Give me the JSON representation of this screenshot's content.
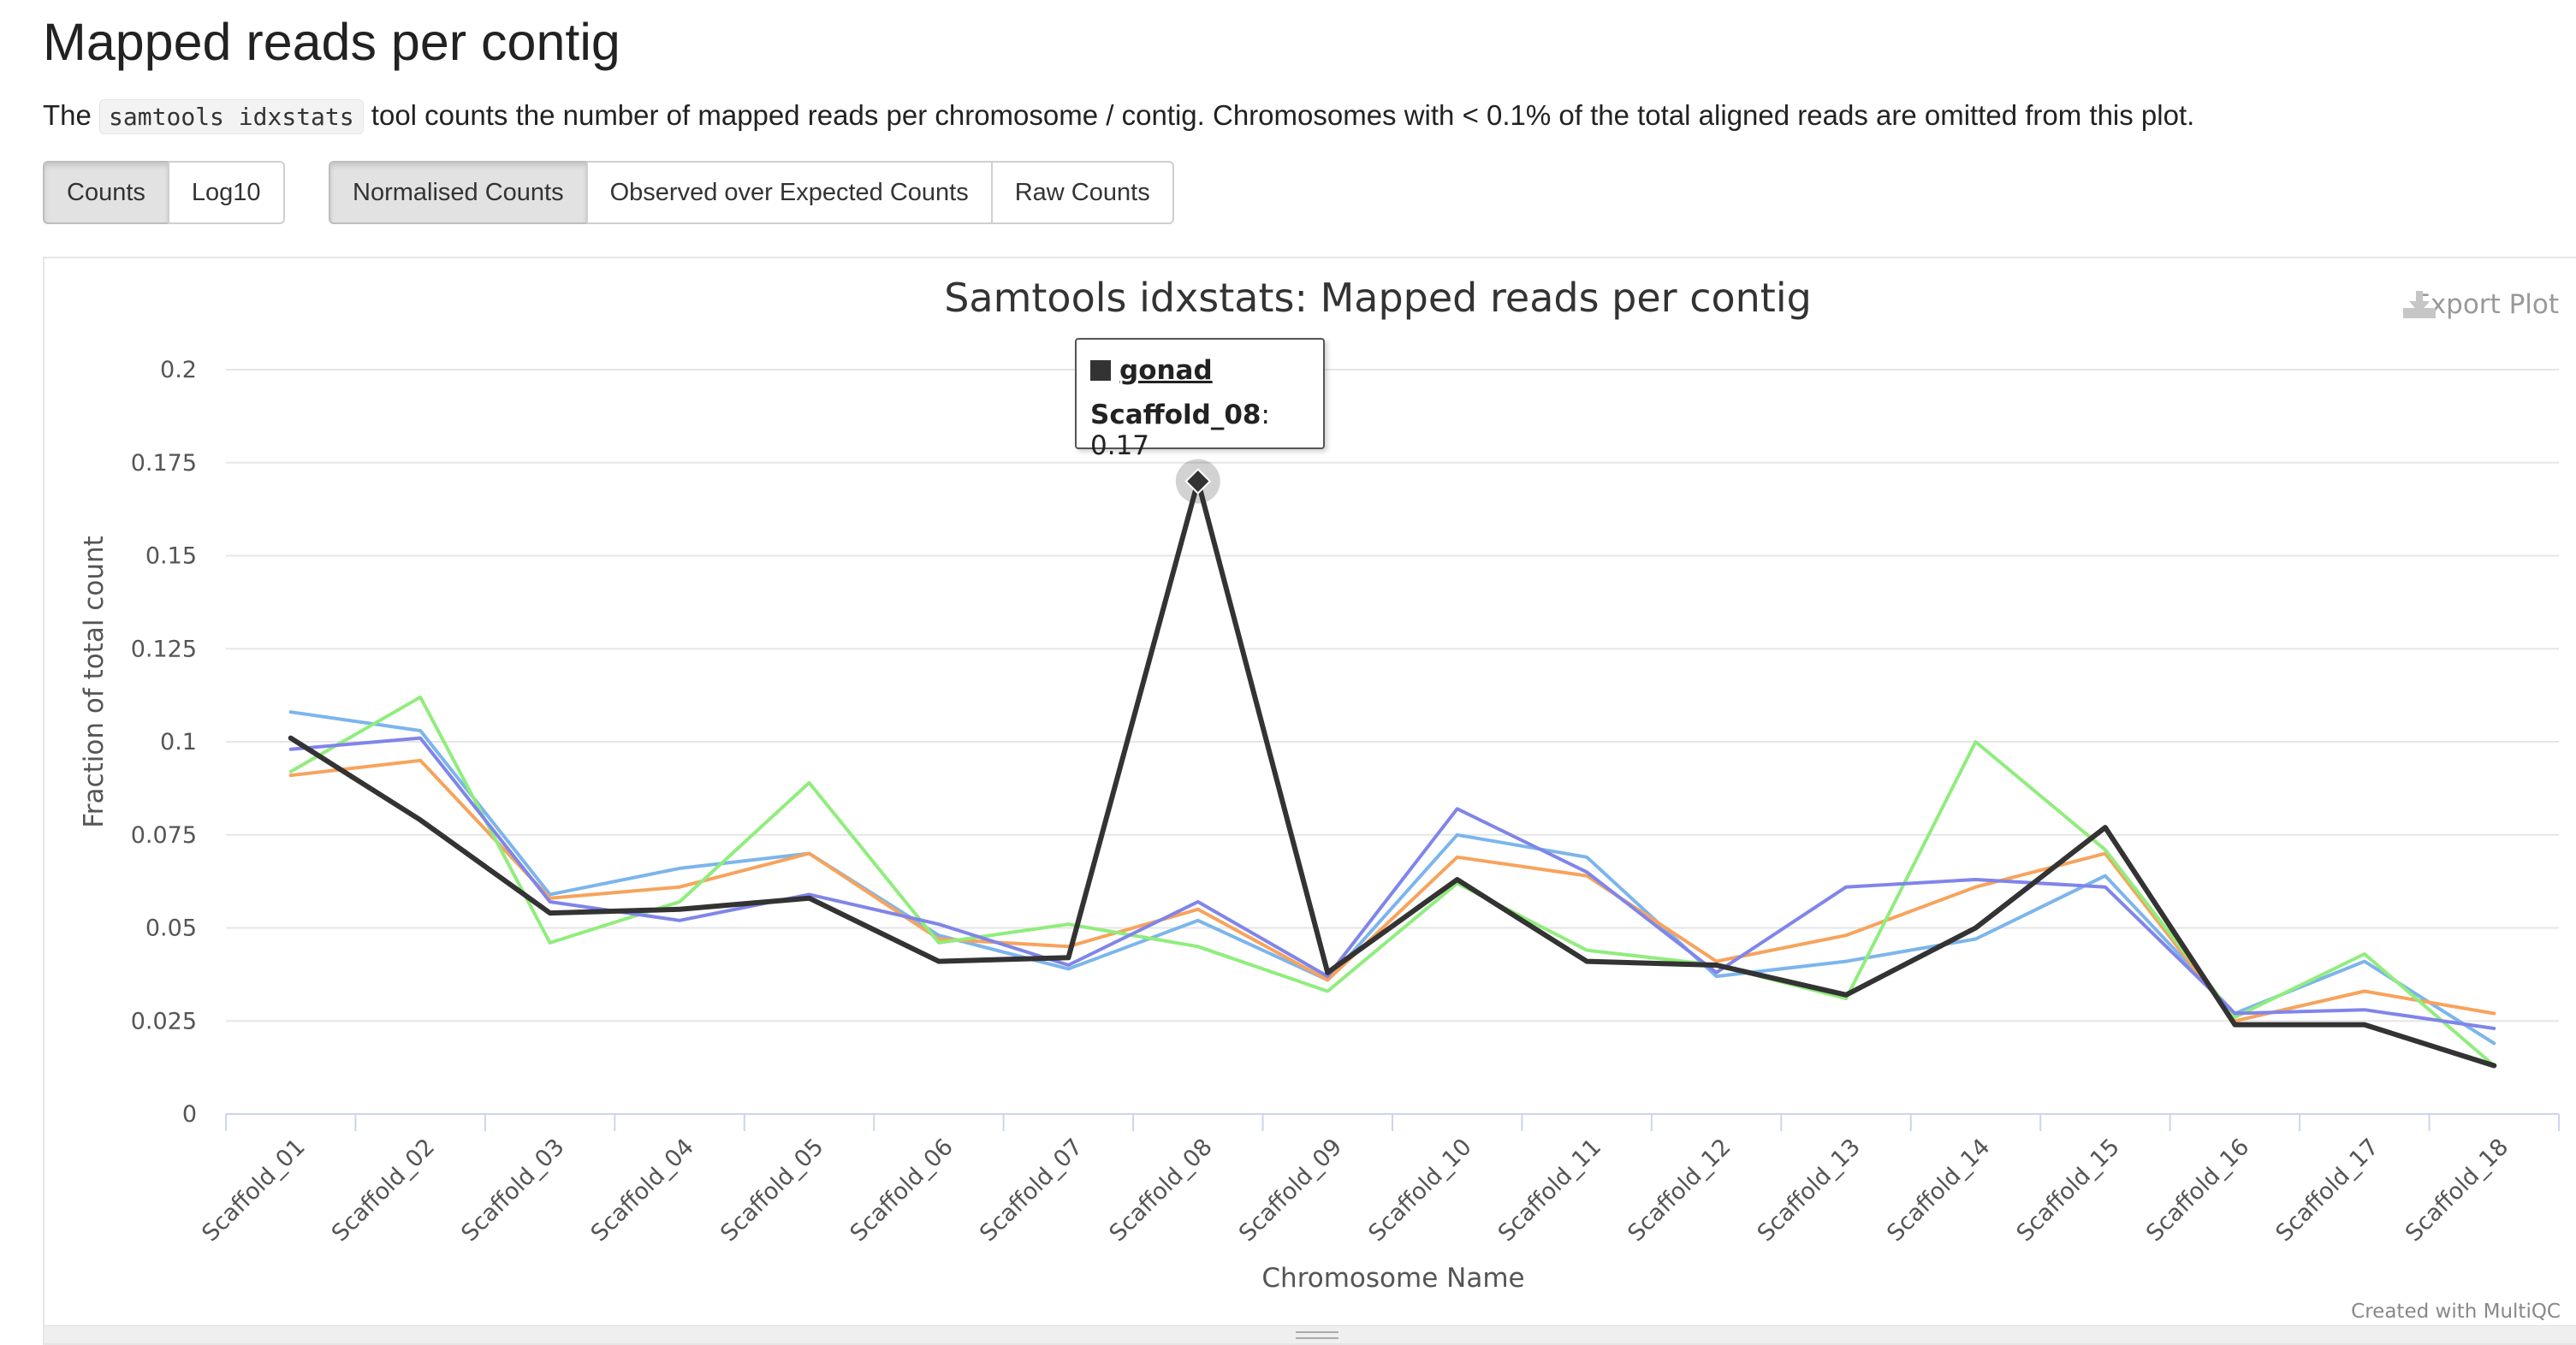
{
  "page": {
    "title": "Mapped reads per contig",
    "intro_before": "The ",
    "intro_code": "samtools idxstats",
    "intro_after": " tool counts the number of mapped reads per chromosome / contig. Chromosomes with < 0.1% of the total aligned reads are omitted from this plot."
  },
  "toolbar": {
    "scale_buttons": [
      {
        "label": "Counts",
        "active": true
      },
      {
        "label": "Log10",
        "active": false
      }
    ],
    "data_buttons": [
      {
        "label": "Normalised Counts",
        "active": true
      },
      {
        "label": "Observed over Expected Counts",
        "active": false
      },
      {
        "label": "Raw Counts",
        "active": false
      }
    ]
  },
  "plot": {
    "export_label": "Export Plot",
    "export_icon": "download-icon",
    "credit": "Created with MultiQC",
    "tooltip": {
      "sample": "gonad",
      "category": "Scaffold_08",
      "sep": ": ",
      "value": "0.17",
      "color": "#333333"
    }
  },
  "chart_data": {
    "type": "line",
    "title": "Samtools idxstats: Mapped reads per contig",
    "xlabel": "Chromosome Name",
    "ylabel": "Fraction of total count",
    "ylim": [
      0,
      0.2
    ],
    "yticks": [
      "0",
      "0.025",
      "0.05",
      "0.075",
      "0.1",
      "0.125",
      "0.15",
      "0.175",
      "0.2"
    ],
    "grid": true,
    "categories": [
      "Scaffold_01",
      "Scaffold_02",
      "Scaffold_03",
      "Scaffold_04",
      "Scaffold_05",
      "Scaffold_06",
      "Scaffold_07",
      "Scaffold_08",
      "Scaffold_09",
      "Scaffold_10",
      "Scaffold_11",
      "Scaffold_12",
      "Scaffold_13",
      "Scaffold_14",
      "Scaffold_15",
      "Scaffold_16",
      "Scaffold_17",
      "Scaffold_18"
    ],
    "series": [
      {
        "color": "#7cb5ec",
        "values": [
          0.108,
          0.103,
          0.059,
          0.066,
          0.07,
          0.048,
          0.039,
          0.052,
          0.036,
          0.075,
          0.069,
          0.037,
          0.041,
          0.047,
          0.064,
          0.027,
          0.041,
          0.019
        ]
      },
      {
        "color": "#f7a35c",
        "values": [
          0.091,
          0.095,
          0.058,
          0.061,
          0.07,
          0.047,
          0.045,
          0.055,
          0.036,
          0.069,
          0.064,
          0.041,
          0.048,
          0.061,
          0.07,
          0.025,
          0.033,
          0.027
        ]
      },
      {
        "color": "#90ed7d",
        "values": [
          0.092,
          0.112,
          0.046,
          0.057,
          0.089,
          0.046,
          0.051,
          0.045,
          0.033,
          0.062,
          0.044,
          0.04,
          0.031,
          0.1,
          0.071,
          0.026,
          0.043,
          0.013
        ]
      },
      {
        "color": "#8085e9",
        "values": [
          0.098,
          0.101,
          0.057,
          0.052,
          0.059,
          0.051,
          0.04,
          0.057,
          0.037,
          0.082,
          0.065,
          0.038,
          0.061,
          0.063,
          0.061,
          0.027,
          0.028,
          0.023
        ]
      },
      {
        "name": "gonad",
        "color": "#333333",
        "values": [
          0.101,
          0.079,
          0.054,
          0.055,
          0.058,
          0.041,
          0.042,
          0.17,
          0.038,
          0.063,
          0.041,
          0.04,
          0.032,
          0.05,
          0.077,
          0.024,
          0.024,
          0.013
        ]
      }
    ]
  }
}
